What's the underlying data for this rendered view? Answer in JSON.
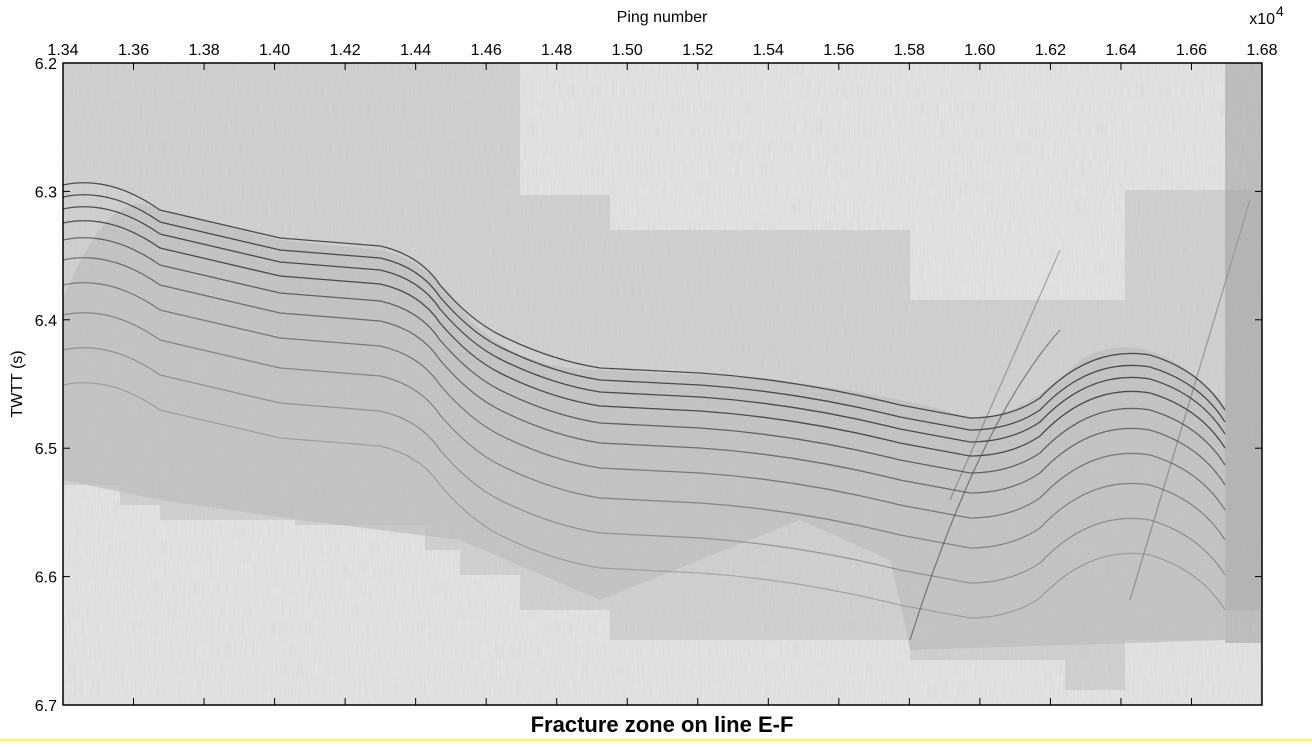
{
  "chart_data": {
    "type": "seismic-section",
    "title": "Fracture zone on line E-F",
    "x_label": "Ping number",
    "y_label": "TWTT (s)",
    "x_scale_label": "x10",
    "x_scale_exponent": 4,
    "xlim": [
      1.34,
      1.68
    ],
    "xticks": [
      1.34,
      1.36,
      1.38,
      {
        "value": 1.4,
        "label": "1.40"
      },
      1.42,
      1.44,
      1.46,
      1.48,
      {
        "value": 1.5,
        "label": "1.50"
      },
      1.52,
      1.54,
      1.56,
      1.58,
      {
        "value": 1.6,
        "label": "1.60"
      },
      1.62,
      1.64,
      1.66,
      1.68
    ],
    "ylim": [
      6.2,
      6.7
    ],
    "yticks": [
      6.2,
      6.3,
      6.4,
      6.5,
      6.6,
      6.7
    ],
    "y_inverted": true
  }
}
